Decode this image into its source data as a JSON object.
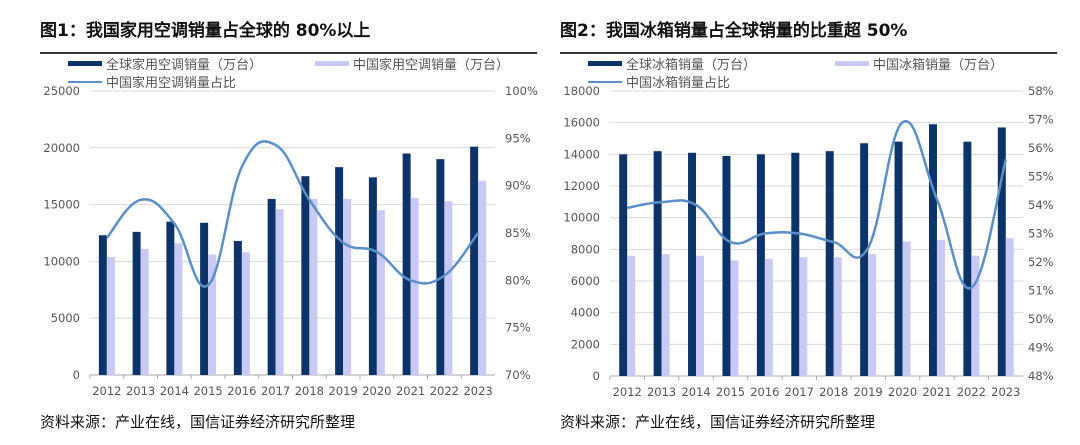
{
  "charts_text": [
    {
      "title": "图1：我国家用空调销量占全球的 80%以上",
      "legend": [
        "全球家用空调销量（万台）",
        "中国家用空调销量（万台）",
        "中国家用空调销量占比"
      ],
      "source": "资料来源：产业在线，国信证券经济研究所整理"
    },
    {
      "title": "图2：我国冰箱销量占全球销量的比重超 50%",
      "legend": [
        "全球冰箱销量（万台）",
        "中国冰箱销量（万台）",
        "中国冰箱销量占比"
      ],
      "source": "资料来源：产业在线，国信证券经济研究所整理"
    }
  ],
  "colors": {
    "global": "#0d3468",
    "china": "#c9c9f5",
    "ratio": "#5b8fc7",
    "grid": "#d9d9d9"
  },
  "chart_data": [
    {
      "type": "bar+line",
      "title": "图1：我国家用空调销量占全球的 80%以上",
      "categories": [
        "2012",
        "2013",
        "2014",
        "2015",
        "2016",
        "2017",
        "2018",
        "2019",
        "2020",
        "2021",
        "2022",
        "2023"
      ],
      "series": [
        {
          "name": "全球家用空调销量（万台）",
          "axis": "left",
          "type": "bar",
          "values": [
            12300,
            12600,
            13500,
            13400,
            11800,
            15500,
            17500,
            18300,
            17400,
            19500,
            19000,
            20100
          ]
        },
        {
          "name": "中国家用空调销量（万台）",
          "axis": "left",
          "type": "bar",
          "values": [
            10400,
            11100,
            11600,
            10600,
            10800,
            14600,
            15500,
            15500,
            14500,
            15600,
            15300,
            17100
          ]
        },
        {
          "name": "中国家用空调销量占比",
          "axis": "right",
          "type": "line",
          "values": [
            84.5,
            88.5,
            86.0,
            79.5,
            92.0,
            94.3,
            88.5,
            84.0,
            83.0,
            80.0,
            80.5,
            85.0
          ]
        }
      ],
      "ylim": [
        0,
        25000
      ],
      "yticks": [
        "0",
        "5000",
        "10000",
        "15000",
        "20000",
        "25000"
      ],
      "y2lim": [
        70,
        100
      ],
      "y2ticks": [
        "70%",
        "75%",
        "80%",
        "85%",
        "90%",
        "95%",
        "100%"
      ],
      "grid": true,
      "legend": "top"
    },
    {
      "type": "bar+line",
      "title": "图2：我国冰箱销量占全球销量的比重超 50%",
      "categories": [
        "2012",
        "2013",
        "2014",
        "2015",
        "2016",
        "2017",
        "2018",
        "2019",
        "2020",
        "2021",
        "2022",
        "2023"
      ],
      "series": [
        {
          "name": "全球冰箱销量（万台）",
          "axis": "left",
          "type": "bar",
          "values": [
            14000,
            14200,
            14100,
            13900,
            14000,
            14100,
            14200,
            14700,
            14800,
            15900,
            14800,
            15700
          ]
        },
        {
          "name": "中国冰箱销量（万台）",
          "axis": "left",
          "type": "bar",
          "values": [
            7600,
            7700,
            7600,
            7300,
            7400,
            7500,
            7500,
            7700,
            8500,
            8600,
            7600,
            8700
          ]
        },
        {
          "name": "中国冰箱销量占比",
          "axis": "right",
          "type": "line",
          "values": [
            53.9,
            54.1,
            54.0,
            52.7,
            53.0,
            53.0,
            52.7,
            52.5,
            56.9,
            54.2,
            51.1,
            55.6
          ]
        }
      ],
      "ylim": [
        0,
        18000
      ],
      "yticks": [
        "0",
        "2000",
        "4000",
        "6000",
        "8000",
        "10000",
        "12000",
        "14000",
        "16000",
        "18000"
      ],
      "y2lim": [
        48,
        58
      ],
      "y2ticks": [
        "48%",
        "49%",
        "50%",
        "51%",
        "52%",
        "53%",
        "54%",
        "55%",
        "56%",
        "57%",
        "58%"
      ],
      "grid": true,
      "legend": "top"
    }
  ]
}
